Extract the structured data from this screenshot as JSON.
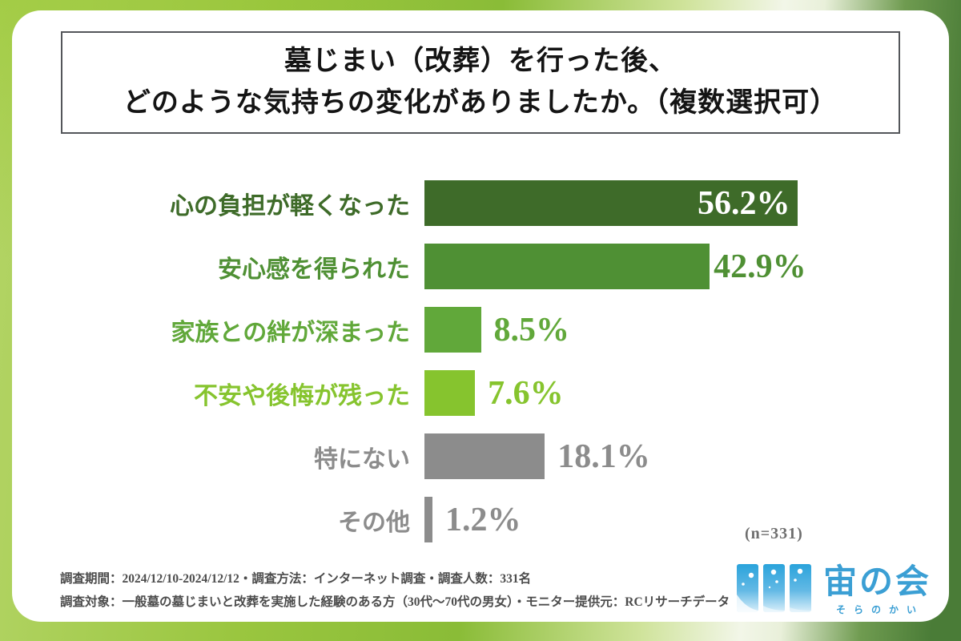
{
  "title": {
    "line1": "墓じまい（改葬）を行った後、",
    "line2": "どのような気持ちの変化がありましたか。（複数選択可）"
  },
  "chart_data": {
    "type": "bar",
    "orientation": "horizontal",
    "title": "墓じまい（改葬）を行った後、どのような気持ちの変化がありましたか。（複数選択可）",
    "categories": [
      "心の負担が軽くなった",
      "安心感を得られた",
      "家族との絆が深まった",
      "不安や後悔が残った",
      "特にない",
      "その他"
    ],
    "values": [
      56.2,
      42.9,
      8.5,
      7.6,
      18.1,
      1.2
    ],
    "value_labels": [
      "56.2%",
      "42.9%",
      "8.5%",
      "7.6%",
      "18.1%",
      "1.2%"
    ],
    "bar_colors": [
      "#3e6b29",
      "#4f9034",
      "#61a83a",
      "#86c42e",
      "#8c8c8c",
      "#8c8c8c"
    ],
    "category_label_colors": [
      "#3e6b29",
      "#4f9034",
      "#61a83a",
      "#86c42e",
      "#8c8c8c",
      "#8c8c8c"
    ],
    "value_label_colors": [
      "#ffffff",
      "#4f9034",
      "#61a83a",
      "#86c42e",
      "#8c8c8c",
      "#8c8c8c"
    ],
    "value_label_inside": [
      true,
      false,
      false,
      false,
      false,
      false
    ],
    "xlim": [
      0,
      60
    ],
    "grid": false,
    "legend": "none",
    "sample_note": "(n=331)"
  },
  "footer": {
    "line1": "調査期間：2024/12/10-2024/12/12・調査方法：インターネット調査・調査人数：331名",
    "line2": "調査対象：一般墓の墓じまいと改葬を実施した経験のある方（30代～70代の男女）・モニター提供元：RCリサーチデータ"
  },
  "logo": {
    "name": "宙の会",
    "reading": "そらのかい",
    "color": "#3b9fd4",
    "icon": "three-window-panels-icon"
  },
  "colors": {
    "frame_lime": "#9ac63f",
    "frame_dark_green": "#4a7c37",
    "card_background": "#ffffff",
    "title_border": "#54565a",
    "note_gray": "#6e6e6e",
    "footer_gray": "#4c4c4c"
  }
}
